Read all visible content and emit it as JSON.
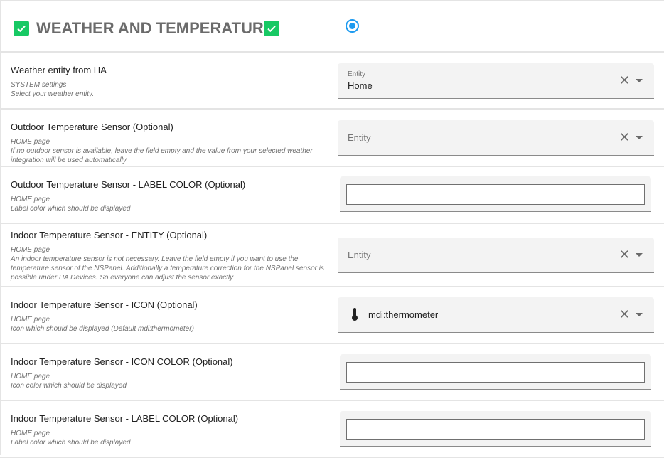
{
  "header": {
    "title": "WEATHER AND TEMPERATURE",
    "check_color": "#17c964",
    "radio_color": "#1e9bf0",
    "radio_selected": true
  },
  "rows": [
    {
      "label": "Weather entity from HA",
      "desc1": "SYSTEM settings",
      "desc2": "Select your weather entity.",
      "field_label": "Entity",
      "value": "Home"
    },
    {
      "label": "Outdoor Temperature Sensor (Optional)",
      "desc1": "HOME page",
      "desc2": "If no outdoor sensor is available, leave the field empty and the value from your selected weather integration will be used automatically",
      "placeholder": "Entity"
    },
    {
      "label": "Outdoor Temperature Sensor - LABEL COLOR (Optional)",
      "desc1": "HOME page",
      "desc2": "Label color which should be displayed",
      "value": ""
    },
    {
      "label": "Indoor Temperature Sensor - ENTITY (Optional)",
      "desc1": "HOME page",
      "desc2": "An indoor temperature sensor is not necessary. Leave the field empty if you want to use the temperature sensor of the NSPanel. Additionally a temperature correction for the NSPanel sensor is possible under HA Devices. So everyone can adjust the sensor exactly",
      "placeholder": "Entity"
    },
    {
      "label": "Indoor Temperature Sensor - ICON (Optional)",
      "desc1": "HOME page",
      "desc2": "Icon which should be displayed (Default mdi:thermometer)",
      "value": "mdi:thermometer",
      "icon": "thermometer-icon"
    },
    {
      "label": "Indoor Temperature Sensor - ICON COLOR (Optional)",
      "desc1": "HOME page",
      "desc2": "Icon color which should be displayed",
      "value": ""
    },
    {
      "label": "Indoor Temperature Sensor - LABEL COLOR (Optional)",
      "desc1": "HOME page",
      "desc2": "Label color which should be displayed",
      "value": ""
    }
  ]
}
